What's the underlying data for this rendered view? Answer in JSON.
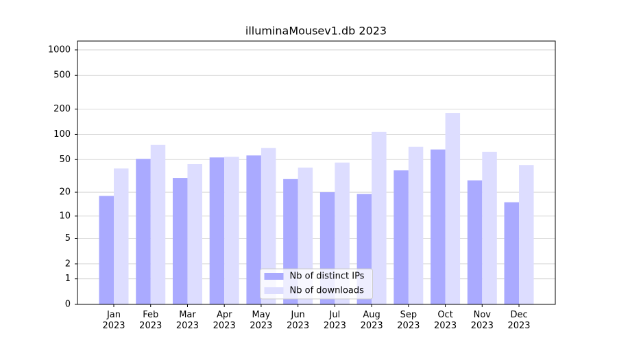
{
  "chart_data": {
    "type": "bar",
    "title": "illuminaMousev1.db 2023",
    "categories": [
      "Jan\n2023",
      "Feb\n2023",
      "Mar\n2023",
      "Apr\n2023",
      "May\n2023",
      "Jun\n2023",
      "Jul\n2023",
      "Aug\n2023",
      "Sep\n2023",
      "Oct\n2023",
      "Nov\n2023",
      "Dec\n2023"
    ],
    "series": [
      {
        "name": "Nb of distinct IPs",
        "color": "#aaaaff",
        "values": [
          18,
          51,
          30,
          53,
          56,
          29,
          20,
          19,
          37,
          66,
          28,
          15
        ]
      },
      {
        "name": "Nb of downloads",
        "color": "#ddddff",
        "values": [
          39,
          75,
          44,
          54,
          69,
          40,
          46,
          107,
          71,
          180,
          62,
          43
        ]
      }
    ],
    "yscale": "log1p",
    "ylim": [
      0,
      1272
    ],
    "yticks": [
      0,
      1,
      2,
      5,
      10,
      20,
      50,
      100,
      200,
      500,
      1000
    ],
    "grid": true,
    "legend": "lower center"
  }
}
